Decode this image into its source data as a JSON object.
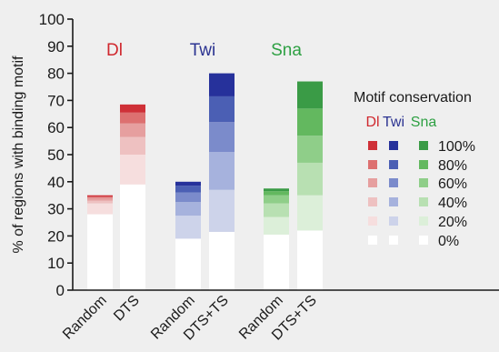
{
  "chart_data": {
    "type": "bar",
    "ylabel": "% of regions with binding motif",
    "ylim": [
      0,
      100
    ],
    "yticks": [
      0,
      10,
      20,
      30,
      40,
      50,
      60,
      70,
      80,
      90,
      100
    ],
    "grid": false,
    "legend_placement": "right",
    "groups": [
      {
        "label": "Dl",
        "color": "#d0282e",
        "palette": [
          "#ffffff",
          "#f6dede",
          "#eec1c1",
          "#e69f9f",
          "#dd7070",
          "#cf3037"
        ],
        "bars": [
          {
            "category": "Random",
            "values": [
              28.0,
              32.0,
              33.0,
              34.0,
              34.5,
              35.0
            ]
          },
          {
            "category": "DTS",
            "values": [
              39.0,
              50.0,
              56.5,
              61.5,
              65.5,
              68.5
            ]
          }
        ]
      },
      {
        "label": "Twi",
        "color": "#2b3391",
        "palette": [
          "#ffffff",
          "#cdd3ea",
          "#a6b2dd",
          "#7b8bcb",
          "#4b5fb4",
          "#26319b"
        ],
        "bars": [
          {
            "category": "Random",
            "values": [
              19.0,
              27.5,
              32.5,
              36.0,
              38.5,
              40.0
            ]
          },
          {
            "category": "DTS+TS",
            "values": [
              21.5,
              37.0,
              51.0,
              62.0,
              71.5,
              80.0
            ]
          }
        ]
      },
      {
        "label": "Sna",
        "color": "#2ea043",
        "palette": [
          "#ffffff",
          "#dcefd9",
          "#b8e0b2",
          "#8fce89",
          "#63b85f",
          "#3a9b46"
        ],
        "bars": [
          {
            "category": "Random",
            "values": [
              20.5,
              27.0,
              32.0,
              35.0,
              36.5,
              37.5
            ]
          },
          {
            "category": "DTS+TS",
            "values": [
              22.0,
              35.0,
              47.0,
              57.0,
              67.0,
              77.0
            ]
          }
        ]
      }
    ],
    "legend": {
      "title": "Motif conservation",
      "series": [
        "Dl",
        "Twi",
        "Sna"
      ],
      "levels": [
        "100%",
        "80%",
        "60%",
        "40%",
        "20%",
        "0%"
      ]
    }
  }
}
